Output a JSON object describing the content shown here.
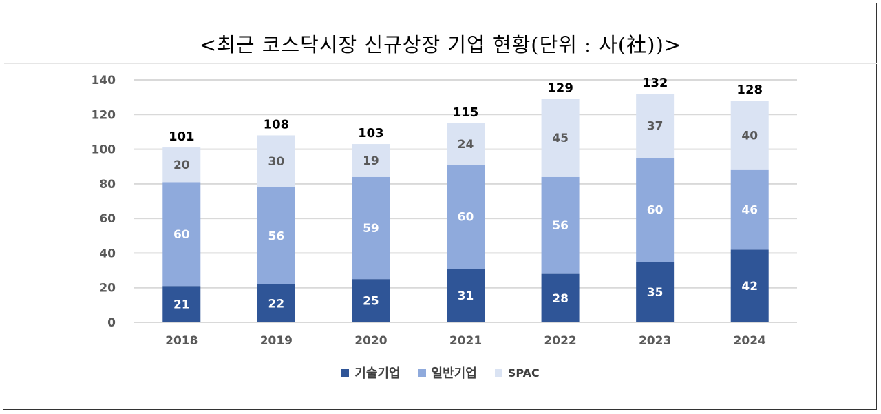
{
  "chart_data": {
    "type": "bar",
    "stacked": true,
    "title": "<최근 코스닥시장 신규상장 기업 현황(단위 : 사(社))>",
    "categories": [
      "2018",
      "2019",
      "2020",
      "2021",
      "2022",
      "2023",
      "2024"
    ],
    "series": [
      {
        "name": "기술기업",
        "color": "#2f5597",
        "values": [
          21,
          22,
          25,
          31,
          28,
          35,
          42
        ]
      },
      {
        "name": "일반기업",
        "color": "#8faadc",
        "values": [
          60,
          56,
          59,
          60,
          56,
          60,
          46
        ]
      },
      {
        "name": "SPAC",
        "color": "#dae3f3",
        "values": [
          20,
          30,
          19,
          24,
          45,
          37,
          40
        ]
      }
    ],
    "totals": [
      101,
      108,
      103,
      115,
      129,
      132,
      128
    ],
    "ylim": [
      0,
      140
    ],
    "yticks": [
      0,
      20,
      40,
      60,
      80,
      100,
      120,
      140
    ],
    "grid": true,
    "legend_position": "bottom",
    "xlabel": "",
    "ylabel": ""
  }
}
